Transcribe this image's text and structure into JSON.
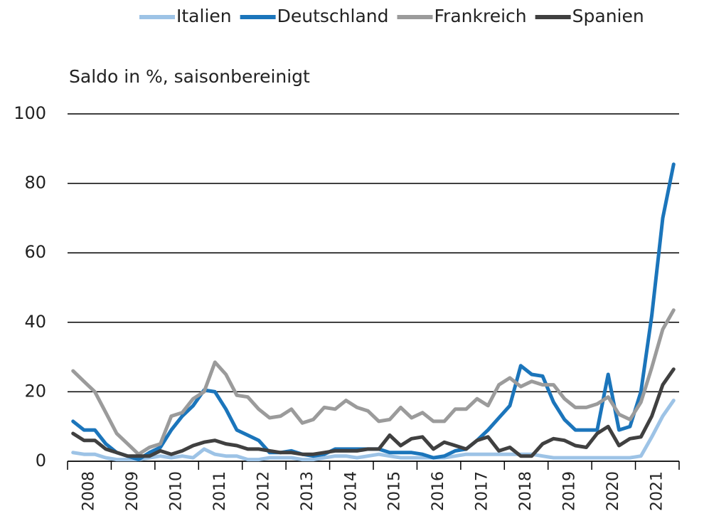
{
  "chart_data": {
    "type": "line",
    "y_label": "Saldo in %, saisonbereinigt",
    "x": [
      2008.125,
      2008.375,
      2008.625,
      2008.875,
      2009.125,
      2009.375,
      2009.625,
      2009.875,
      2010.125,
      2010.375,
      2010.625,
      2010.875,
      2011.125,
      2011.375,
      2011.625,
      2011.875,
      2012.125,
      2012.375,
      2012.625,
      2012.875,
      2013.125,
      2013.375,
      2013.625,
      2013.875,
      2014.125,
      2014.375,
      2014.625,
      2014.875,
      2015.125,
      2015.375,
      2015.625,
      2015.875,
      2016.125,
      2016.375,
      2016.625,
      2016.875,
      2017.125,
      2017.375,
      2017.625,
      2017.875,
      2018.125,
      2018.375,
      2018.625,
      2018.875,
      2019.125,
      2019.375,
      2019.625,
      2019.875,
      2020.125,
      2020.375,
      2020.625,
      2020.875,
      2021.125,
      2021.375,
      2021.625,
      2021.875
    ],
    "series": [
      {
        "name": "Italien",
        "color": "#9dc3e6",
        "values": [
          2.5,
          2,
          2,
          1,
          0.5,
          0.5,
          0.5,
          1,
          1.5,
          1,
          1.5,
          1,
          3.5,
          2,
          1.5,
          1.5,
          0.5,
          0.5,
          1,
          1,
          1,
          0.5,
          0.5,
          1,
          1.5,
          1.5,
          1,
          1.5,
          2,
          1.5,
          1,
          1,
          1,
          1,
          1,
          1.5,
          2,
          2,
          2,
          2,
          2,
          2,
          2,
          1.5,
          1,
          1,
          1,
          1,
          1,
          1,
          1,
          1,
          1.5,
          7,
          13,
          17.5
        ]
      },
      {
        "name": "Deutschland",
        "color": "#1b75bb",
        "values": [
          11.5,
          9,
          9,
          5,
          2.5,
          1.5,
          0.5,
          2.5,
          4,
          9,
          13,
          16,
          20.5,
          20,
          15,
          9,
          7.5,
          6,
          2.5,
          2.5,
          3,
          2,
          1.5,
          2,
          3.5,
          3.5,
          3.5,
          3.5,
          3.5,
          2.5,
          2.5,
          2.5,
          2,
          1,
          1.5,
          3,
          3.5,
          6,
          9,
          12.5,
          16,
          27.5,
          25,
          24.5,
          17,
          12,
          9,
          9,
          9,
          25,
          9,
          10,
          20,
          42,
          70,
          85.5
        ]
      },
      {
        "name": "Frankreich",
        "color": "#9b9b9b",
        "values": [
          26,
          23,
          20,
          14,
          8,
          5,
          2,
          4,
          5,
          13,
          14,
          18,
          20,
          28.5,
          25,
          19,
          18.5,
          15,
          12.5,
          13,
          15,
          11,
          12,
          15.5,
          15,
          17.5,
          15.5,
          14.5,
          11.5,
          12,
          15.5,
          12.5,
          14,
          11.5,
          11.5,
          15,
          15,
          18,
          16,
          22,
          24,
          21.5,
          23,
          22,
          22,
          18,
          15.5,
          15.5,
          16.5,
          18.5,
          13.5,
          12,
          17,
          27,
          38,
          43.5
        ]
      },
      {
        "name": "Spanien",
        "color": "#404040",
        "values": [
          8,
          6,
          6,
          3.5,
          2.5,
          1.5,
          1.5,
          1.5,
          3,
          2,
          3,
          4.5,
          5.5,
          6,
          5,
          4.5,
          3.5,
          3.5,
          3,
          2.5,
          2.5,
          2,
          2,
          2.5,
          3,
          3,
          3,
          3.5,
          3.5,
          7.5,
          4.5,
          6.5,
          7,
          3.5,
          5.5,
          4.5,
          3.5,
          6,
          7,
          3,
          4,
          1.5,
          1.5,
          5,
          6.5,
          6,
          4.5,
          4,
          8,
          10,
          4.5,
          6.5,
          7,
          13,
          22,
          26.5
        ]
      }
    ],
    "xlim": [
      2008,
      2022
    ],
    "xticks": [
      {
        "value": 2008.5,
        "label": "2008"
      },
      {
        "value": 2009.5,
        "label": "2009"
      },
      {
        "value": 2010.5,
        "label": "2010"
      },
      {
        "value": 2011.5,
        "label": "2011"
      },
      {
        "value": 2012.5,
        "label": "2012"
      },
      {
        "value": 2013.5,
        "label": "2013"
      },
      {
        "value": 2014.5,
        "label": "2014"
      },
      {
        "value": 2015.5,
        "label": "2015"
      },
      {
        "value": 2016.5,
        "label": "2016"
      },
      {
        "value": 2017.5,
        "label": "2017"
      },
      {
        "value": 2018.5,
        "label": "2018"
      },
      {
        "value": 2019.5,
        "label": "2019"
      },
      {
        "value": 2020.5,
        "label": "2020"
      },
      {
        "value": 2021.5,
        "label": "2021"
      }
    ],
    "ylim": [
      0,
      100
    ],
    "yticks": [
      0,
      20,
      40,
      60,
      80,
      100
    ],
    "grid": true,
    "legend": "top"
  }
}
